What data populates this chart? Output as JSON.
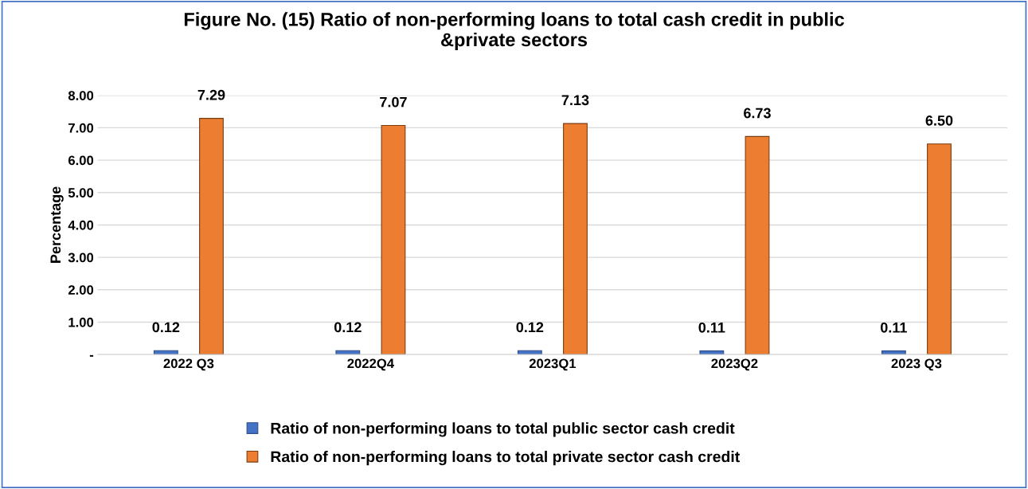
{
  "chart_data": {
    "type": "bar",
    "title": "Figure No. (15) Ratio of non-performing loans to total cash credit in public\n&private sectors",
    "ylabel": "Percentage",
    "categories": [
      "2022 Q3",
      "2022Q4",
      "2023Q1",
      "2023Q2",
      "2023 Q3"
    ],
    "series": [
      {
        "name": "Ratio of non-performing loans to total public sector cash credit",
        "color": "#4472c4",
        "values": [
          0.12,
          0.12,
          0.12,
          0.11,
          0.11
        ],
        "value_labels": [
          "0.12",
          "0.12",
          "0.12",
          "0.11",
          "0.11"
        ]
      },
      {
        "name": "Ratio of non-performing loans to total private sector cash credit",
        "color": "#ed7d31",
        "values": [
          7.29,
          7.07,
          7.13,
          6.73,
          6.5
        ],
        "value_labels": [
          "7.29",
          "7.07",
          "7.13",
          "6.73",
          "6.50"
        ]
      }
    ],
    "ylim": [
      0,
      8
    ],
    "yticks": [
      {
        "value": 0,
        "label": "-"
      },
      {
        "value": 1,
        "label": "1.00"
      },
      {
        "value": 2,
        "label": "2.00"
      },
      {
        "value": 3,
        "label": "3.00"
      },
      {
        "value": 4,
        "label": "4.00"
      },
      {
        "value": 5,
        "label": "5.00"
      },
      {
        "value": 6,
        "label": "6.00"
      },
      {
        "value": 7,
        "label": "7.00"
      },
      {
        "value": 8,
        "label": "8.00"
      }
    ],
    "grid": "y",
    "legend": "bottom"
  }
}
